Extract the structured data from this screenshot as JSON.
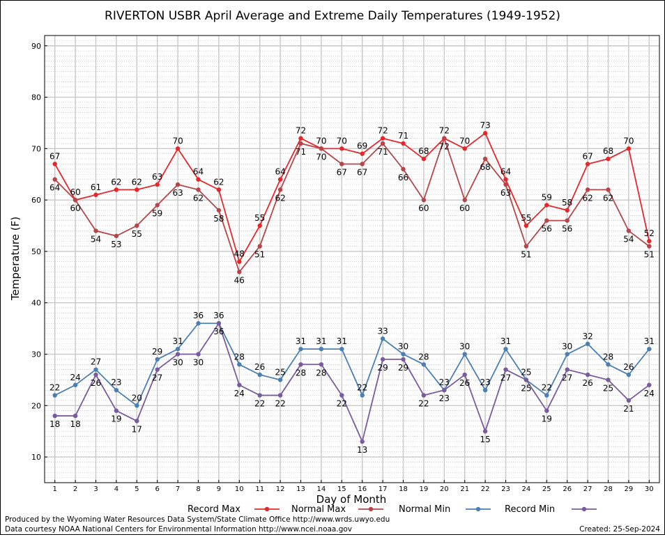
{
  "title": "RIVERTON USBR April Average and Extreme Daily Temperatures (1949-1952)",
  "footer": {
    "left_line1": "Produced by the Wyoming Water Resources Data System/State Climate Office http://www.wrds.uwyo.edu",
    "left_line2": "Data courtesy NOAA National Centers for Environmental Information http://www.ncei.noaa.gov",
    "created": "Created:  25-Sep-2024"
  },
  "colors": {
    "record_max": "#e8262a",
    "normal_max": "#b84447",
    "normal_min": "#4a7fb5",
    "record_min": "#7a5a9e",
    "grid": "#c8c8c8",
    "minor_grid": "#b0b0b0"
  },
  "chart_data": {
    "type": "line",
    "title": "RIVERTON USBR April Average and Extreme Daily Temperatures (1949-1952)",
    "xlabel": "Day of Month",
    "ylabel": "Temperature (F)",
    "xlim": [
      0.5,
      30.5
    ],
    "ylim": [
      5,
      92
    ],
    "yticks": [
      10,
      20,
      30,
      40,
      50,
      60,
      70,
      80,
      90
    ],
    "grid": true,
    "legend_position": "bottom",
    "x": [
      1,
      2,
      3,
      4,
      5,
      6,
      7,
      8,
      9,
      10,
      11,
      12,
      13,
      14,
      15,
      16,
      17,
      18,
      19,
      20,
      21,
      22,
      23,
      24,
      25,
      26,
      27,
      28,
      29,
      30
    ],
    "series": [
      {
        "name": "Record Max",
        "color": "#e8262a",
        "values": [
          67,
          60,
          61,
          62,
          62,
          63,
          70,
          64,
          62,
          48,
          55,
          64,
          72,
          70,
          70,
          69,
          72,
          71,
          68,
          72,
          70,
          73,
          64,
          55,
          59,
          58,
          67,
          68,
          70,
          52
        ]
      },
      {
        "name": "Normal Max",
        "color": "#b84447",
        "values": [
          64,
          60,
          54,
          53,
          55,
          59,
          63,
          62,
          58,
          46,
          51,
          62,
          71,
          70,
          67,
          67,
          71,
          66,
          60,
          72,
          60,
          68,
          63,
          51,
          56,
          56,
          62,
          62,
          54,
          51
        ]
      },
      {
        "name": "Normal Min",
        "color": "#4a7fb5",
        "values": [
          22,
          24,
          27,
          23,
          20,
          29,
          31,
          36,
          36,
          28,
          26,
          25,
          31,
          31,
          31,
          22,
          33,
          30,
          28,
          23,
          30,
          23,
          31,
          25,
          22,
          30,
          32,
          28,
          26,
          31
        ]
      },
      {
        "name": "Record Min",
        "color": "#7a5a9e",
        "values": [
          18,
          18,
          26,
          19,
          17,
          27,
          30,
          30,
          36,
          24,
          22,
          22,
          28,
          28,
          22,
          13,
          29,
          29,
          22,
          23,
          26,
          15,
          27,
          25,
          19,
          27,
          26,
          25,
          21,
          24
        ]
      }
    ]
  }
}
